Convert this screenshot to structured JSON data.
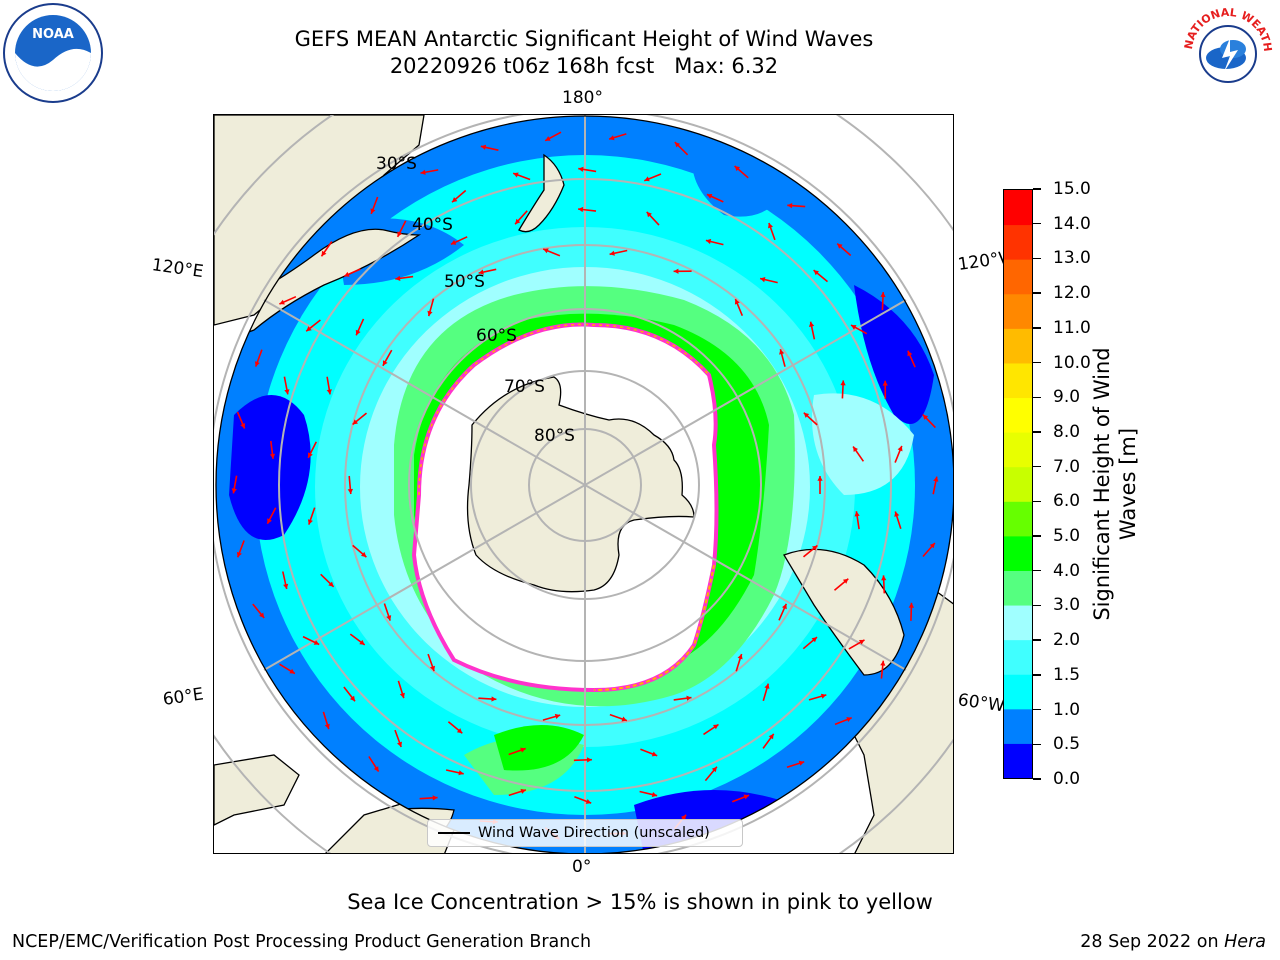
{
  "title": {
    "line1": "GEFS MEAN Antarctic Significant Height of Wind Waves",
    "line2": "20220926 t06z 168h fcst   Max: 6.32"
  },
  "map": {
    "longitude_labels": {
      "top": "180°",
      "bottom": "0°",
      "upper_left": "120°E",
      "upper_right": "120°W",
      "lower_left": "60°E",
      "lower_right": "60°W"
    },
    "latitude_labels": [
      "30°S",
      "40°S",
      "50°S",
      "60°S",
      "70°S",
      "80°S"
    ],
    "colors": {
      "land": "#efedda",
      "ice": "#ffffff",
      "arrow": "#ff0000",
      "grid": "#b4b4b4",
      "sea_ice_edge": "#ff33cc"
    }
  },
  "legend": {
    "label": "Wind Wave Direction (unscaled)"
  },
  "colorbar": {
    "title": "Significant Height of Wind Waves [m]",
    "tick_labels": [
      "0.0",
      "0.5",
      "1.0",
      "1.5",
      "2.0",
      "3.0",
      "4.0",
      "5.0",
      "6.0",
      "7.0",
      "8.0",
      "9.0",
      "10.0",
      "11.0",
      "12.0",
      "13.0",
      "14.0",
      "15.0"
    ],
    "colors": [
      "#0000ff",
      "#0080ff",
      "#00ffff",
      "#40ffff",
      "#a0ffff",
      "#55ff80",
      "#00ff00",
      "#66ff00",
      "#c8ff00",
      "#e8ff00",
      "#ffff00",
      "#ffe600",
      "#ffbb00",
      "#ff8800",
      "#ff6600",
      "#ff3300",
      "#ff0000"
    ]
  },
  "note": "Sea Ice Concentration > 15% is shown in pink to yellow",
  "footer": {
    "left": "NCEP/EMC/Verification Post Processing Product Generation Branch",
    "right_date": "28 Sep 2022 on",
    "right_machine": "Hera"
  },
  "logos": {
    "left": "NOAA",
    "right": "NATIONAL WEATHER SERVICE"
  }
}
